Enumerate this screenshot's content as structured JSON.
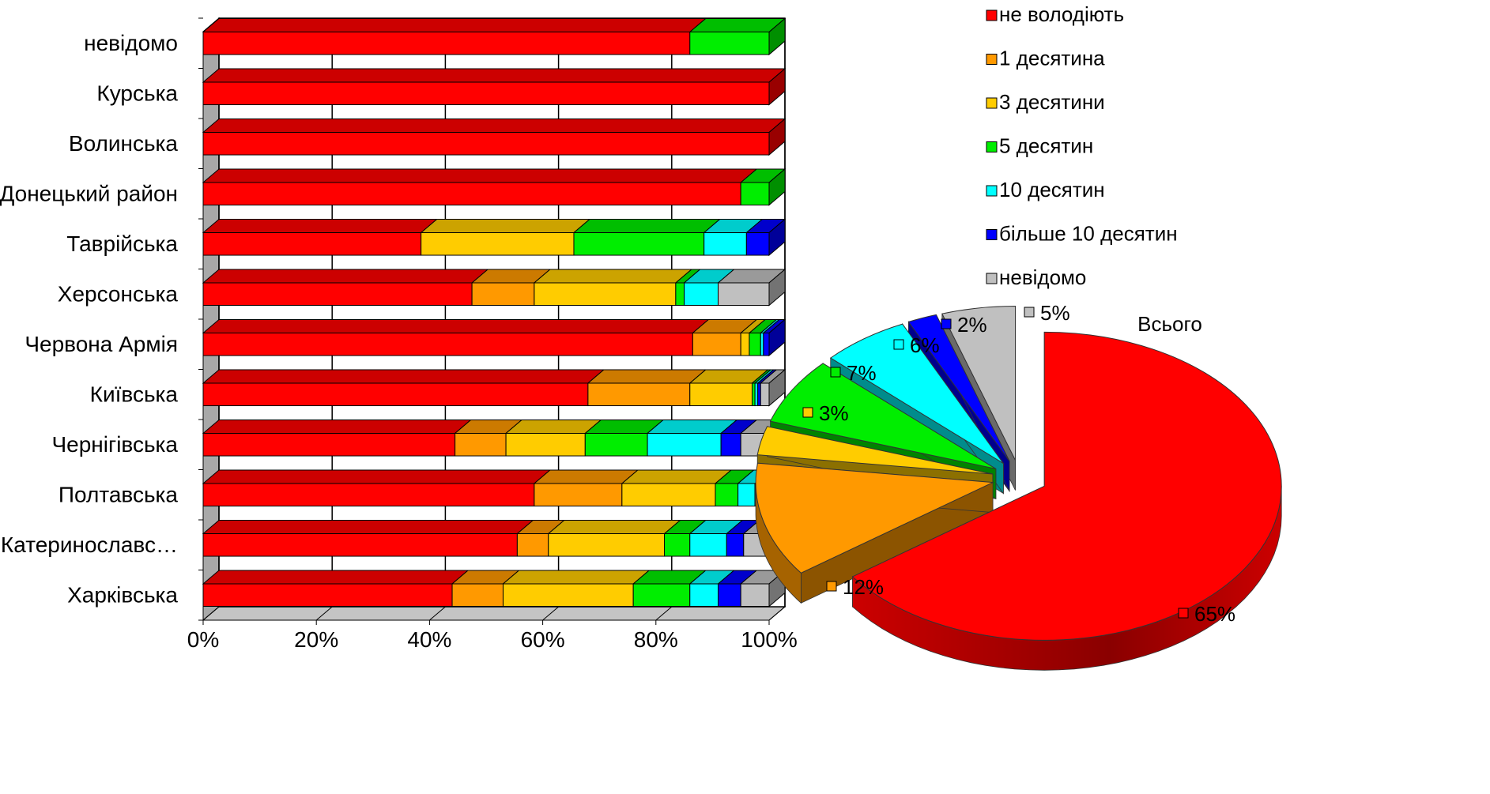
{
  "chart_data": [
    {
      "type": "bar",
      "orientation": "horizontal",
      "stacked": "percent",
      "style": "3d",
      "categories": [
        "Харківська",
        "Катеринославс…",
        "Полтавська",
        "Чернігівська",
        "Київська",
        "Червона Армія",
        "Херсонська",
        "Таврійська",
        "Донецький район",
        "Волинська",
        "Курська",
        "невідомо"
      ],
      "series": [
        {
          "name": "не володіють",
          "color": "#ff0000",
          "values": [
            44,
            55.5,
            58.5,
            44.5,
            68,
            86.5,
            47.5,
            38.5,
            95,
            100,
            100,
            86
          ]
        },
        {
          "name": "1 десятина",
          "color": "#ff9900",
          "values": [
            9,
            5.5,
            15.5,
            9,
            18,
            8.5,
            11,
            0,
            0,
            0,
            0,
            0
          ]
        },
        {
          "name": "3 десятини",
          "color": "#ffcc00",
          "values": [
            23,
            20.5,
            16.5,
            14,
            11,
            1.5,
            25,
            27,
            0,
            0,
            0,
            0
          ]
        },
        {
          "name": "5 десятин",
          "color": "#00ee00",
          "values": [
            10,
            4.5,
            4,
            11,
            0.5,
            2,
            1.5,
            23,
            5,
            0,
            0,
            14
          ]
        },
        {
          "name": "10 десятин",
          "color": "#00ffff",
          "values": [
            5,
            6.5,
            3,
            13,
            0.5,
            0.5,
            6,
            7.5,
            0,
            0,
            0,
            0
          ]
        },
        {
          "name": "більше 10 десятин",
          "color": "#0000ff",
          "values": [
            4,
            3,
            0,
            3.5,
            0.5,
            1,
            0,
            4,
            0,
            0,
            0,
            0
          ]
        },
        {
          "name": "невідомо",
          "color": "#c0c0c0",
          "values": [
            5,
            4.5,
            2.5,
            5,
            1.5,
            0,
            9,
            0,
            0,
            0,
            0,
            0
          ]
        }
      ],
      "xlim": [
        0,
        100
      ],
      "x_ticks": [
        "0%",
        "20%",
        "40%",
        "60%",
        "80%",
        "100%"
      ],
      "grid": true
    },
    {
      "type": "pie",
      "style": "3d-exploded",
      "title": "Всього",
      "slices": [
        {
          "name": "не володіють",
          "value": 65,
          "label": "65%",
          "color": "#ff0000"
        },
        {
          "name": "1 десятина",
          "value": 12,
          "label": "12%",
          "color": "#ff9900"
        },
        {
          "name": "3 десятини",
          "value": 3,
          "label": "3%",
          "color": "#ffcc00"
        },
        {
          "name": "5 десятин",
          "value": 7,
          "label": "7%",
          "color": "#00ee00"
        },
        {
          "name": "10 десятин",
          "value": 6,
          "label": "6%",
          "color": "#00ffff"
        },
        {
          "name": "більше 10 десятин",
          "value": 2,
          "label": "2%",
          "color": "#0000ff"
        },
        {
          "name": "невідомо",
          "value": 5,
          "label": "5%",
          "color": "#c0c0c0"
        }
      ]
    }
  ],
  "legend": {
    "placement": "top-right",
    "items": [
      "не володіють",
      "1 десятина",
      "3 десятини",
      "5 десятин",
      "10 десятин",
      "більше 10 десятин",
      "невідомо"
    ]
  }
}
